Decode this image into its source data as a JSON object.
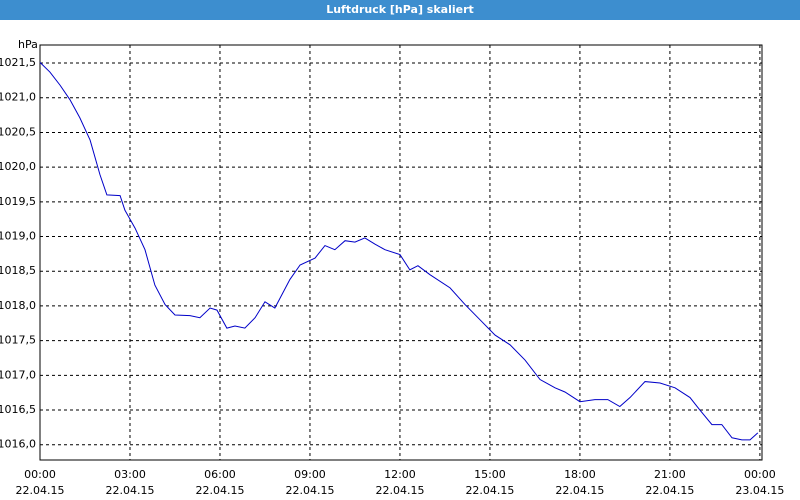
{
  "window_title": "Luftdruck [hPa] skaliert",
  "chart_data": {
    "type": "line",
    "y_unit": "hPa",
    "x": [
      0,
      0.33,
      0.67,
      1.0,
      1.33,
      1.67,
      2.0,
      2.23,
      2.67,
      2.83,
      3.17,
      3.5,
      3.83,
      4.17,
      4.5,
      5.0,
      5.33,
      5.67,
      5.9,
      6.23,
      6.5,
      6.83,
      7.17,
      7.5,
      7.83,
      8.33,
      8.67,
      9.17,
      9.5,
      9.83,
      10.17,
      10.5,
      10.83,
      11.17,
      11.5,
      12.0,
      12.33,
      12.6,
      13.0,
      13.67,
      14.17,
      14.67,
      15.17,
      15.67,
      16.17,
      16.67,
      17.17,
      17.5,
      18.0,
      18.5,
      18.93,
      19.33,
      19.67,
      20.17,
      20.67,
      21.17,
      21.67,
      22.0,
      22.4,
      22.73,
      23.07,
      23.4,
      23.67,
      23.93
    ],
    "series": [
      {
        "color": "#0000c8",
        "values": [
          1021.51,
          1021.37,
          1021.18,
          1020.97,
          1020.71,
          1020.39,
          1019.89,
          1019.6,
          1019.59,
          1019.38,
          1019.12,
          1018.81,
          1018.3,
          1018.02,
          1017.87,
          1017.86,
          1017.83,
          1017.97,
          1017.94,
          1017.68,
          1017.71,
          1017.68,
          1017.83,
          1018.06,
          1017.97,
          1018.38,
          1018.59,
          1018.69,
          1018.87,
          1018.81,
          1018.94,
          1018.92,
          1018.98,
          1018.89,
          1018.81,
          1018.74,
          1018.52,
          1018.58,
          1018.45,
          1018.26,
          1018.02,
          1017.8,
          1017.58,
          1017.44,
          1017.22,
          1016.94,
          1016.82,
          1016.76,
          1016.62,
          1016.65,
          1016.65,
          1016.55,
          1016.68,
          1016.91,
          1016.89,
          1016.82,
          1016.68,
          1016.5,
          1016.29,
          1016.29,
          1016.1,
          1016.07,
          1016.07,
          1016.17
        ]
      }
    ],
    "xlim": [
      0,
      24.07
    ],
    "ylim": [
      1015.78,
      1021.76
    ],
    "xticks": [
      {
        "value": 0,
        "label": "00:00",
        "sublabel": "22.04.15"
      },
      {
        "value": 3,
        "label": "03:00",
        "sublabel": "22.04.15"
      },
      {
        "value": 6,
        "label": "06:00",
        "sublabel": "22.04.15"
      },
      {
        "value": 9,
        "label": "09:00",
        "sublabel": "22.04.15"
      },
      {
        "value": 12,
        "label": "12:00",
        "sublabel": "22.04.15"
      },
      {
        "value": 15,
        "label": "15:00",
        "sublabel": "22.04.15"
      },
      {
        "value": 18,
        "label": "18:00",
        "sublabel": "22.04.15"
      },
      {
        "value": 21,
        "label": "21:00",
        "sublabel": "22.04.15"
      },
      {
        "value": 24,
        "label": "00:00",
        "sublabel": "23.04.15"
      }
    ],
    "yticks": [
      {
        "value": 1016.0,
        "label": "1016,0"
      },
      {
        "value": 1016.5,
        "label": "1016,5"
      },
      {
        "value": 1017.0,
        "label": "1017,0"
      },
      {
        "value": 1017.5,
        "label": "1017,5"
      },
      {
        "value": 1018.0,
        "label": "1018,0"
      },
      {
        "value": 1018.5,
        "label": "1018,5"
      },
      {
        "value": 1019.0,
        "label": "1019,0"
      },
      {
        "value": 1019.5,
        "label": "1019,5"
      },
      {
        "value": 1020.0,
        "label": "1020,0"
      },
      {
        "value": 1020.5,
        "label": "1020,5"
      },
      {
        "value": 1021.0,
        "label": "1021,0"
      },
      {
        "value": 1021.5,
        "label": "1021,5"
      }
    ],
    "grid": true
  }
}
